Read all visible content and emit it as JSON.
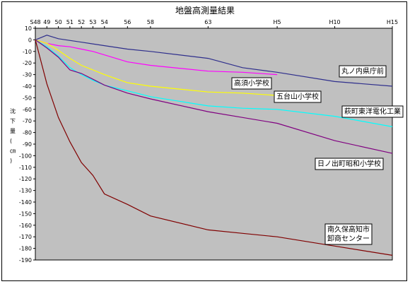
{
  "chart_data": {
    "type": "line",
    "title": "地盤高測量結果",
    "ylabel": "沈下量(㎝)",
    "ylim": [
      -190,
      10
    ],
    "yticks": [
      10,
      0,
      -10,
      -20,
      -30,
      -40,
      -50,
      -60,
      -70,
      -80,
      -90,
      -100,
      -110,
      -120,
      -130,
      -140,
      -150,
      -160,
      -170,
      -180,
      -190
    ],
    "xlim": [
      48,
      15
    ],
    "xticks": [
      {
        "label": "S48",
        "x": 48
      },
      {
        "label": "49",
        "x": 49
      },
      {
        "label": "50",
        "x": 50
      },
      {
        "label": "51",
        "x": 51
      },
      {
        "label": "52",
        "x": 52
      },
      {
        "label": "53",
        "x": 53
      },
      {
        "label": "54",
        "x": 54
      },
      {
        "label": "56",
        "x": 56
      },
      {
        "label": "58",
        "x": 58
      },
      {
        "label": "63",
        "x": 63
      },
      {
        "label": "H5",
        "x": 69
      },
      {
        "label": "H10",
        "x": 74
      },
      {
        "label": "H15",
        "x": 79
      }
    ],
    "grid": false,
    "legend": "inline labels",
    "series": [
      {
        "name": "丸ノ内県庁前",
        "color": "#2e2e8c",
        "points": [
          [
            48,
            0
          ],
          [
            49,
            4
          ],
          [
            50,
            1
          ],
          [
            52,
            -2
          ],
          [
            54,
            -5
          ],
          [
            56,
            -8
          ],
          [
            58,
            -10
          ],
          [
            63,
            -16
          ],
          [
            66,
            -24
          ],
          [
            69,
            -28
          ],
          [
            74,
            -36
          ],
          [
            79,
            -40
          ]
        ]
      },
      {
        "name": "高須小学校",
        "color": "#ff00ff",
        "points": [
          [
            48,
            0
          ],
          [
            49,
            -3
          ],
          [
            50,
            -5
          ],
          [
            51,
            -6
          ],
          [
            52,
            -8
          ],
          [
            53,
            -10
          ],
          [
            54,
            -13
          ],
          [
            56,
            -19
          ],
          [
            58,
            -22
          ],
          [
            63,
            -27
          ],
          [
            66,
            -28
          ],
          [
            69,
            -30
          ]
        ]
      },
      {
        "name": "五台山小学校",
        "color": "#ffff00",
        "points": [
          [
            48,
            0
          ],
          [
            49,
            -3
          ],
          [
            50,
            -9
          ],
          [
            51,
            -16
          ],
          [
            52,
            -22
          ],
          [
            53,
            -26
          ],
          [
            54,
            -30
          ],
          [
            56,
            -37
          ],
          [
            58,
            -40
          ],
          [
            63,
            -45
          ],
          [
            66,
            -46
          ],
          [
            69,
            -48
          ]
        ]
      },
      {
        "name": "萩町東洋電化工業",
        "color": "#00ffff",
        "points": [
          [
            48,
            0
          ],
          [
            49,
            -6
          ],
          [
            50,
            -14
          ],
          [
            51,
            -24
          ],
          [
            52,
            -30
          ],
          [
            53,
            -35
          ],
          [
            54,
            -39
          ],
          [
            56,
            -44
          ],
          [
            58,
            -49
          ],
          [
            63,
            -57
          ],
          [
            66,
            -59
          ],
          [
            69,
            -60
          ],
          [
            74,
            -66
          ],
          [
            79,
            -75
          ]
        ]
      },
      {
        "name": "日ノ出町昭和小学校",
        "color": "#800080",
        "points": [
          [
            48,
            0
          ],
          [
            49,
            -7
          ],
          [
            50,
            -15
          ],
          [
            51,
            -26
          ],
          [
            52,
            -29
          ],
          [
            53,
            -34
          ],
          [
            54,
            -39
          ],
          [
            56,
            -46
          ],
          [
            58,
            -51
          ],
          [
            63,
            -62
          ],
          [
            66,
            -67
          ],
          [
            69,
            -72
          ],
          [
            74,
            -87
          ],
          [
            79,
            -98
          ]
        ]
      },
      {
        "name": "南久保高知市 卸商センター",
        "color": "#800000",
        "points": [
          [
            48,
            0
          ],
          [
            49,
            -38
          ],
          [
            50,
            -67
          ],
          [
            51,
            -88
          ],
          [
            52,
            -106
          ],
          [
            53,
            -117
          ],
          [
            54,
            -133
          ],
          [
            56,
            -142
          ],
          [
            58,
            -152
          ],
          [
            63,
            -164
          ],
          [
            66,
            -167
          ],
          [
            69,
            -170
          ],
          [
            74,
            -178
          ],
          [
            79,
            -186
          ]
        ]
      }
    ]
  }
}
